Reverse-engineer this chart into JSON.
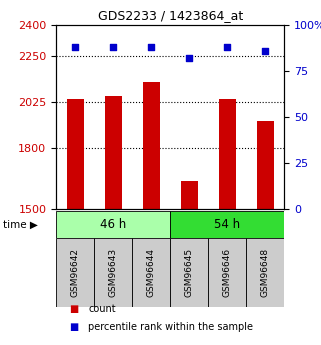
{
  "title": "GDS2233 / 1423864_at",
  "samples": [
    "GSM96642",
    "GSM96643",
    "GSM96644",
    "GSM96645",
    "GSM96646",
    "GSM96648"
  ],
  "bar_values": [
    2040,
    2055,
    2120,
    1640,
    2040,
    1930
  ],
  "percentile_values": [
    88,
    88,
    88,
    82,
    88,
    86
  ],
  "bar_color": "#cc0000",
  "dot_color": "#0000cc",
  "ylim_left": [
    1500,
    2400
  ],
  "ylim_right": [
    0,
    100
  ],
  "yticks_left": [
    1500,
    1800,
    2025,
    2250,
    2400
  ],
  "yticks_right": [
    0,
    25,
    50,
    75,
    100
  ],
  "ytick_labels_right": [
    "0",
    "25",
    "50",
    "75",
    "100%"
  ],
  "groups": [
    {
      "label": "46 h",
      "indices": [
        0,
        1,
        2
      ],
      "color": "#aaffaa"
    },
    {
      "label": "54 h",
      "indices": [
        3,
        4,
        5
      ],
      "color": "#33dd33"
    }
  ],
  "xlabel_color": "#cc0000",
  "ylabel_right_color": "#0000cc",
  "background_color": "#ffffff",
  "tick_label_bg": "#cccccc",
  "legend_items": [
    {
      "label": "count",
      "color": "#cc0000"
    },
    {
      "label": "percentile rank within the sample",
      "color": "#0000cc"
    }
  ],
  "bar_width": 0.45,
  "title_fontsize": 9,
  "ytick_fontsize": 8,
  "sample_fontsize": 6.5,
  "group_fontsize": 8.5,
  "legend_fontsize": 7,
  "time_fontsize": 7.5
}
